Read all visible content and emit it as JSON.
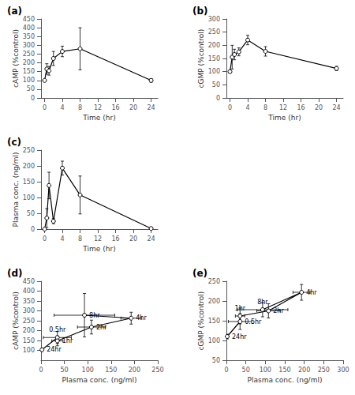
{
  "chart_data": [
    {
      "type": "line",
      "title": "(a)",
      "xlabel": "Time (hr)",
      "ylabel": "cAMP (%control)",
      "x": [
        0,
        0.5,
        1,
        2,
        4,
        8,
        24
      ],
      "values": [
        100,
        165,
        155,
        225,
        265,
        280,
        100
      ],
      "yerr": [
        5,
        30,
        25,
        40,
        30,
        120,
        10
      ],
      "xlim": [
        -0.8,
        25.5
      ],
      "ylim": [
        0,
        450
      ],
      "xticks": [
        0,
        4,
        8,
        12,
        16,
        20,
        24
      ],
      "yticks": [
        0,
        50,
        100,
        150,
        200,
        250,
        300,
        350,
        400,
        450
      ],
      "color": "#000000",
      "marker": "o",
      "grid": false
    },
    {
      "type": "line",
      "title": "(b)",
      "xlabel": "Time (hr)",
      "ylabel": "cGMP (%control)",
      "x": [
        0,
        0.5,
        1,
        2,
        4,
        8,
        24
      ],
      "values": [
        100,
        155,
        165,
        175,
        220,
        177,
        112
      ],
      "yerr": [
        5,
        45,
        20,
        15,
        18,
        18,
        8
      ],
      "xlim": [
        -0.8,
        25.5
      ],
      "ylim": [
        0,
        300
      ],
      "xticks": [
        0,
        4,
        8,
        12,
        16,
        20,
        24
      ],
      "yticks": [
        0,
        50,
        100,
        150,
        200,
        250,
        300
      ],
      "color": "#000000",
      "marker": "o",
      "grid": false
    },
    {
      "type": "line",
      "title": "(c)",
      "xlabel": "Time (hr)",
      "ylabel": "Plasma conc. (ng/ml)",
      "x": [
        0,
        0.5,
        1,
        2,
        4,
        8,
        24
      ],
      "values": [
        0,
        35,
        138,
        25,
        193,
        108,
        2
      ],
      "yerr": [
        0,
        30,
        42,
        8,
        22,
        60,
        1
      ],
      "xlim": [
        -0.8,
        25.5
      ],
      "ylim": [
        0,
        250
      ],
      "xticks": [
        0,
        4,
        8,
        12,
        16,
        20,
        24
      ],
      "yticks": [
        0,
        50,
        100,
        150,
        200,
        250
      ],
      "color": "#000000",
      "marker": "o",
      "grid": false
    },
    {
      "type": "line",
      "title": "(d)",
      "xlabel": "Plasma conc. (ng/ml)",
      "ylabel": "cAMP (%control)",
      "annotations": [
        "24hr",
        "0.5hr",
        "1hr",
        "2hr",
        "4hr",
        "8hr"
      ],
      "x": [
        2,
        35,
        35,
        108,
        193,
        93
      ],
      "values": [
        103,
        165,
        148,
        218,
        263,
        278
      ],
      "xerr": [
        1,
        30,
        12,
        30,
        22,
        65
      ],
      "yerr": [
        8,
        30,
        25,
        35,
        30,
        110
      ],
      "xlim": [
        0,
        250
      ],
      "ylim": [
        50,
        450
      ],
      "xticks": [
        0,
        50,
        100,
        150,
        200,
        250
      ],
      "yticks": [
        100,
        150,
        200,
        250,
        300,
        350,
        400,
        450
      ],
      "color": "#000000",
      "marker": "o",
      "grid": false
    },
    {
      "type": "line",
      "title": "(e)",
      "xlabel": "Plasma conc. (ng/ml)",
      "ylabel": "cGMP (%control)",
      "annotations": [
        "24hr",
        "0.5hr",
        "1hr",
        "2hr",
        "4hr",
        "8hr"
      ],
      "x": [
        2,
        35,
        35,
        108,
        193,
        93
      ],
      "values": [
        110,
        148,
        162,
        175,
        222,
        178
      ],
      "xerr": [
        1,
        30,
        12,
        30,
        22,
        65
      ],
      "yerr": [
        6,
        20,
        20,
        18,
        20,
        18
      ],
      "xlim": [
        0,
        300
      ],
      "ylim": [
        50,
        250
      ],
      "xticks": [
        0,
        50,
        100,
        150,
        200,
        250,
        300
      ],
      "yticks": [
        50,
        100,
        150,
        200,
        250
      ],
      "color": "#000000",
      "marker": "o",
      "grid": false
    }
  ]
}
